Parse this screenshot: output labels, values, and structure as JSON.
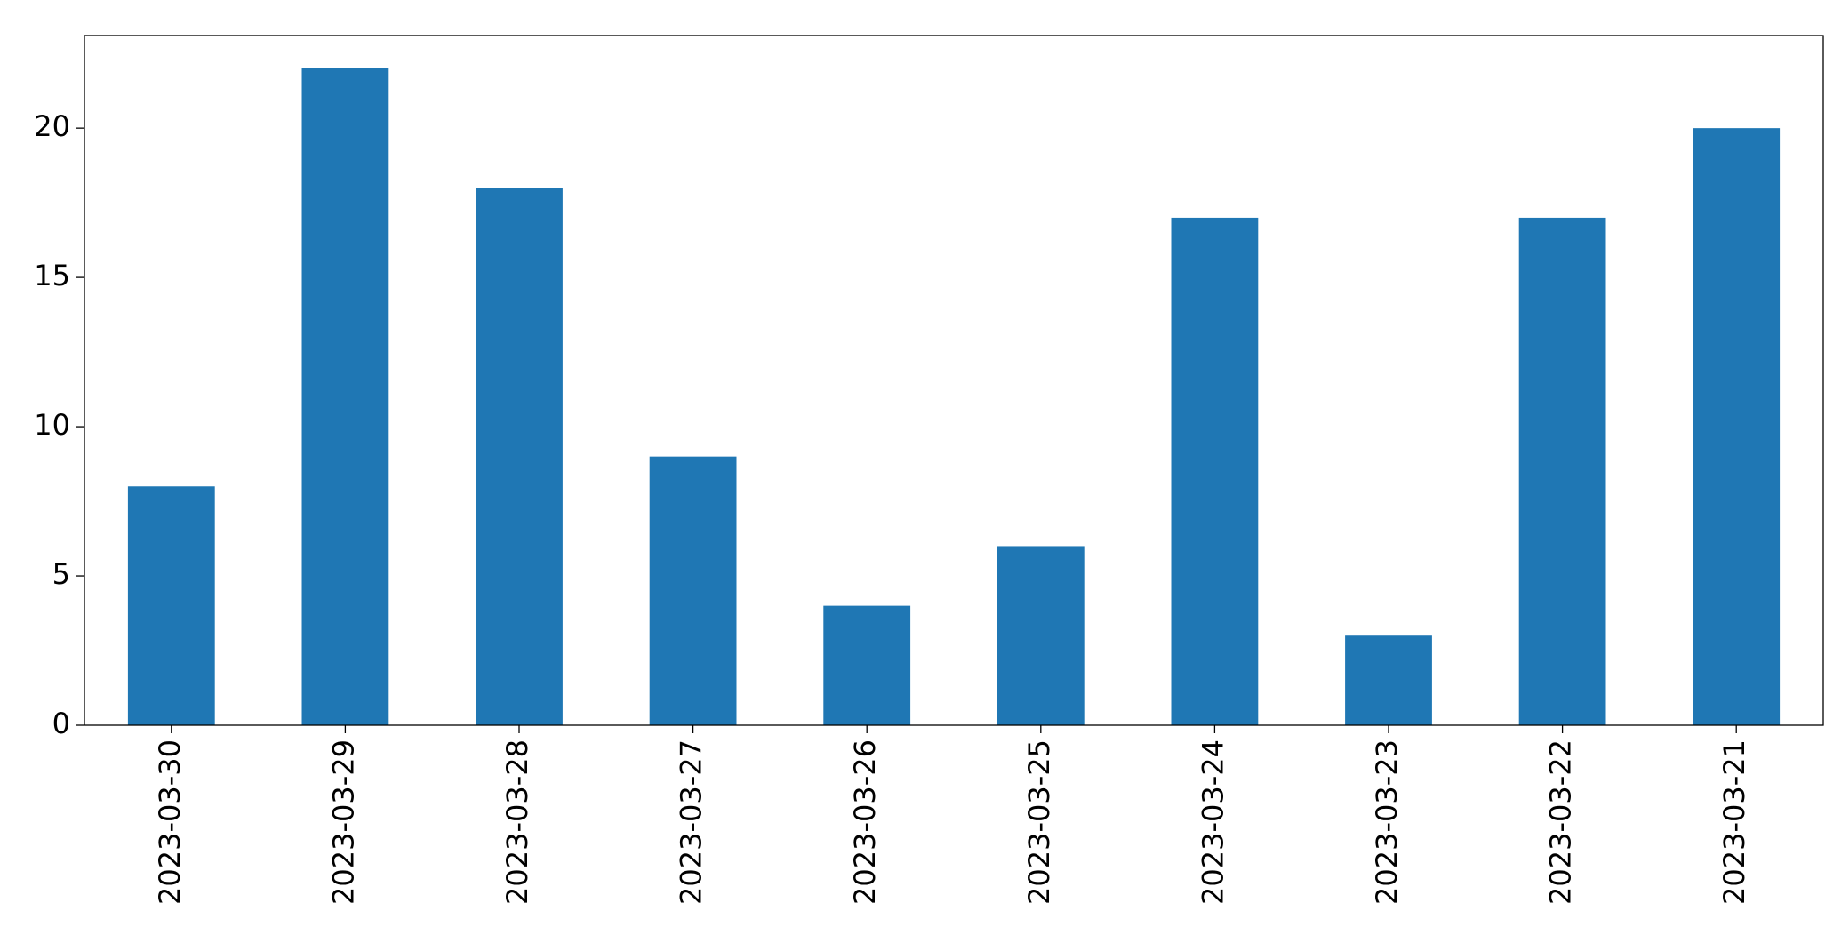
{
  "chart_data": {
    "type": "bar",
    "categories": [
      "2023-03-30",
      "2023-03-29",
      "2023-03-28",
      "2023-03-27",
      "2023-03-26",
      "2023-03-25",
      "2023-03-24",
      "2023-03-23",
      "2023-03-22",
      "2023-03-21"
    ],
    "values": [
      8,
      22,
      18,
      9,
      4,
      6,
      17,
      3,
      17,
      20
    ],
    "color": "#1f77b4",
    "ylim": [
      0,
      23.1
    ],
    "yticks": [
      0,
      5,
      10,
      15,
      20
    ],
    "grid": false
  }
}
